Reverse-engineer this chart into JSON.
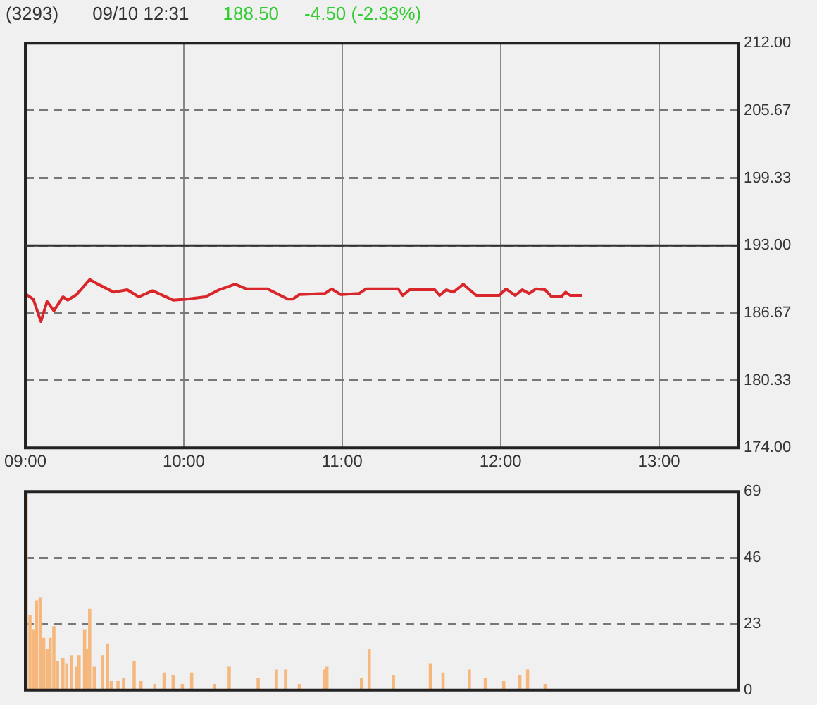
{
  "chart_data": [
    {
      "type": "line",
      "title": "(3293)",
      "subtitle": "09/10 12:31",
      "annotations": [
        "188.50",
        "-4.50 (-2.33%)"
      ],
      "x": [
        9.006,
        9.05,
        9.098,
        9.137,
        9.18,
        9.237,
        9.267,
        9.324,
        9.406,
        9.47,
        9.557,
        9.643,
        9.716,
        9.803,
        9.933,
        10.02,
        10.137,
        10.223,
        10.324,
        10.397,
        10.528,
        10.658,
        10.687,
        10.73,
        10.89,
        10.933,
        10.991,
        11.107,
        11.15,
        11.354,
        11.383,
        11.426,
        11.585,
        11.615,
        11.658,
        11.702,
        11.765,
        11.846,
        11.991,
        12.035,
        12.093,
        12.137,
        12.18,
        12.223,
        12.281,
        12.324,
        12.383,
        12.411,
        12.441,
        12.513
      ],
      "series": [
        {
          "color": "#d9262b",
          "values": [
            188.4,
            187.96,
            185.86,
            187.74,
            186.86,
            188.18,
            187.87,
            188.4,
            189.8,
            189.28,
            188.62,
            188.84,
            188.18,
            188.75,
            187.87,
            187.96,
            188.18,
            188.84,
            189.36,
            188.92,
            188.92,
            187.96,
            187.96,
            188.4,
            188.49,
            188.92,
            188.4,
            188.49,
            188.92,
            188.92,
            188.31,
            188.84,
            188.84,
            188.31,
            188.84,
            188.62,
            189.36,
            188.31,
            188.31,
            188.92,
            188.31,
            188.84,
            188.49,
            188.92,
            188.84,
            188.18,
            188.18,
            188.62,
            188.31,
            188.31
          ]
        }
      ],
      "xlim": [
        9,
        13.5
      ],
      "xticks": [
        {
          "value": 9,
          "label": "09:00"
        },
        {
          "value": 10,
          "label": "10:00"
        },
        {
          "value": 11,
          "label": "11:00"
        },
        {
          "value": 12,
          "label": "12:00"
        },
        {
          "value": 13,
          "label": "13:00"
        }
      ],
      "ylim": [
        174,
        212
      ],
      "yticks": [
        {
          "value": 174,
          "label": "174.00"
        },
        {
          "value": 180.33,
          "label": "180.33"
        },
        {
          "value": 186.67,
          "label": "186.67"
        },
        {
          "value": 193,
          "label": "193.00"
        },
        {
          "value": 199.33,
          "label": "199.33"
        },
        {
          "value": 205.67,
          "label": "205.67"
        },
        {
          "value": 212,
          "label": "212.00"
        }
      ],
      "ref_lines": [
        {
          "axis": "y",
          "value": 193,
          "color": "#333333"
        }
      ],
      "grid": true,
      "legend": false
    },
    {
      "type": "bar",
      "x": [
        9.006,
        9.029,
        9.05,
        9.07,
        9.093,
        9.116,
        9.137,
        9.157,
        9.18,
        9.203,
        9.237,
        9.261,
        9.29,
        9.324,
        9.339,
        9.374,
        9.389,
        9.406,
        9.435,
        9.487,
        9.519,
        9.542,
        9.585,
        9.62,
        9.687,
        9.73,
        9.817,
        9.876,
        9.933,
        9.991,
        10.05,
        10.194,
        10.287,
        10.47,
        10.585,
        10.643,
        10.73,
        10.89,
        10.904,
        11.122,
        11.171,
        11.324,
        11.557,
        11.637,
        11.803,
        11.904,
        12.02,
        12.122,
        12.171,
        12.281
      ],
      "series": [
        {
          "color": "#f5b77c",
          "values": [
            69,
            26,
            21,
            31,
            32,
            18,
            14,
            18,
            22,
            10,
            11,
            9,
            12,
            8,
            12,
            21,
            14,
            28,
            8,
            12,
            16,
            3,
            3,
            4,
            10,
            3,
            2,
            6,
            5,
            2,
            6,
            2,
            8,
            4,
            7,
            7,
            2,
            7,
            8,
            4,
            14,
            5,
            9,
            6,
            7,
            4,
            3,
            5,
            7,
            2
          ]
        }
      ],
      "xlim": [
        9,
        13.5
      ],
      "ylim": [
        0,
        69
      ],
      "yticks": [
        0,
        23,
        46,
        69
      ],
      "grid": "y",
      "tick_labels": "y",
      "legend": false
    }
  ]
}
